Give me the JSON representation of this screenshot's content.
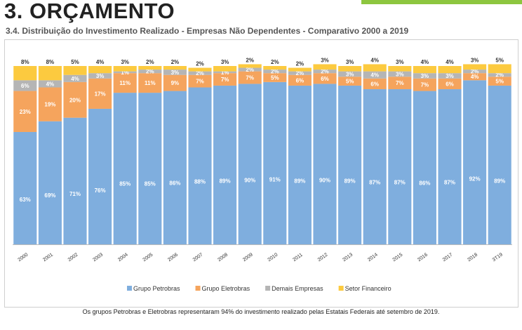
{
  "header": {
    "title": "3. ORÇAMENTO",
    "subtitle": "3.4. Distribuição do Investimento Realizado - Empresas Não Dependentes - Comparativo 2000 a 2019"
  },
  "footnote": "Os grupos Petrobras e Eletrobras representaram 94% do investimento realizado pelas Estatais Federais até setembro de 2019.",
  "colors": {
    "accent": "#8dc63f",
    "frame": "#cfcfcf"
  },
  "chart_data": {
    "type": "bar",
    "stacked": true,
    "percent": true,
    "categories": [
      "2000",
      "2001",
      "2002",
      "2003",
      "2004",
      "2005",
      "2006",
      "2007",
      "2008",
      "2009",
      "2010",
      "2011",
      "2012",
      "2013",
      "2014",
      "2015",
      "2016",
      "2017",
      "2018",
      "3T19"
    ],
    "series": [
      {
        "name": "Grupo Petrobras",
        "color": "#7faede",
        "values": [
          63,
          69,
          71,
          76,
          85,
          85,
          86,
          88,
          89,
          90,
          91,
          89,
          90,
          89,
          87,
          87,
          86,
          87,
          92,
          89
        ]
      },
      {
        "name": "Grupo Eletrobras",
        "color": "#f5a45d",
        "values": [
          23,
          19,
          20,
          17,
          11,
          11,
          9,
          7,
          7,
          7,
          5,
          6,
          6,
          5,
          6,
          7,
          7,
          6,
          4,
          5
        ]
      },
      {
        "name": "Demais Empresas",
        "color": "#b5b5b5",
        "values": [
          6,
          4,
          4,
          3,
          1,
          2,
          3,
          2,
          1,
          2,
          2,
          2,
          2,
          3,
          4,
          3,
          3,
          3,
          2,
          2
        ]
      },
      {
        "name": "Setor Financeiro",
        "color": "#fcca3f",
        "values": [
          8,
          8,
          5,
          4,
          3,
          2,
          2,
          2,
          3,
          2,
          2,
          2,
          3,
          3,
          4,
          3,
          4,
          4,
          3,
          5
        ]
      }
    ],
    "ylim": [
      0,
      100
    ],
    "xlabel": "",
    "ylabel": "",
    "legend_position": "bottom",
    "grid": false,
    "value_labels": true,
    "value_label_suffix": "%"
  }
}
